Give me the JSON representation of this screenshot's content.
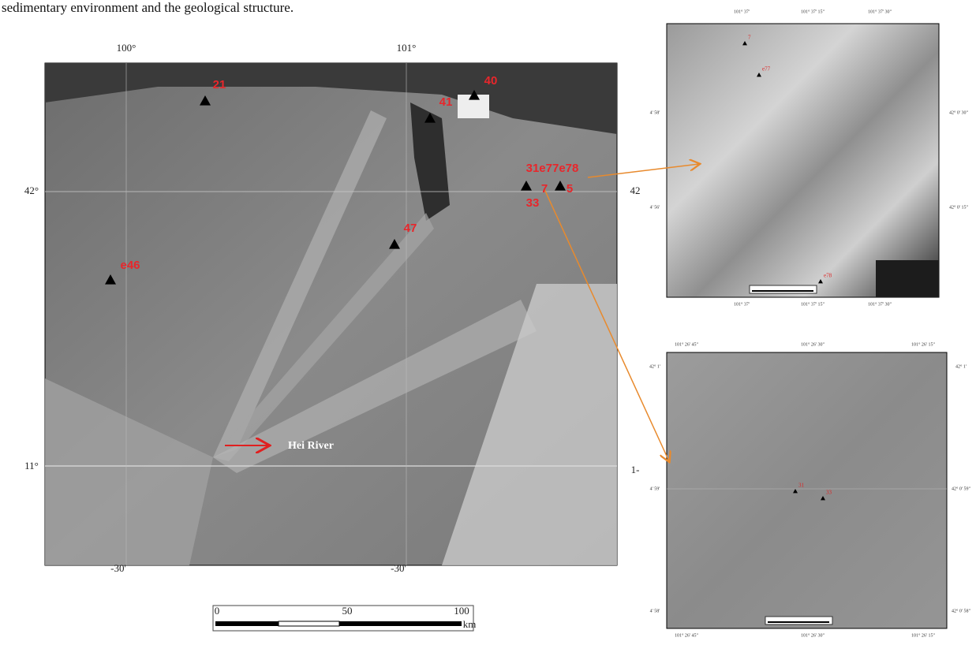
{
  "caption": "sedimentary environment and the geological structure.",
  "main_map": {
    "top_ticks": [
      "100°",
      "101°"
    ],
    "left_ticks": [
      "42°",
      "11°"
    ],
    "right_ticks": [
      "42",
      "1-"
    ],
    "bottom_ticks": [
      "-30'",
      "-30'"
    ],
    "sites": [
      {
        "label": "21"
      },
      {
        "label": "40"
      },
      {
        "label": "41"
      },
      {
        "label": "e46"
      },
      {
        "label": "47"
      },
      {
        "label": "31e77e78"
      },
      {
        "label": "7"
      },
      {
        "label": "5"
      },
      {
        "label": "33"
      }
    ],
    "river_label": "Hei River",
    "scale_labels": [
      "0",
      "50",
      "100",
      "km"
    ]
  },
  "insets": [
    {
      "top_ticks": [
        "101° 37'",
        "101° 37' 15\"",
        "101° 37' 30\""
      ],
      "bottom_ticks": [
        "101° 37'",
        "101° 37' 15\"",
        "101° 37' 30\""
      ],
      "left_ticks": [
        "4' 58'",
        "4' 56'"
      ],
      "right_ticks": [
        "42° 0' 30\"",
        "42° 0' 15\""
      ],
      "sites": [
        {
          "label": "7"
        },
        {
          "label": "e77"
        },
        {
          "label": "e78"
        }
      ]
    },
    {
      "top_ticks": [
        "101° 26' 45\"",
        "101° 26' 30\"",
        "101° 26' 15\""
      ],
      "bottom_ticks": [
        "101° 26' 45\"",
        "101° 26' 30\"",
        "101° 26' 15\""
      ],
      "left_ticks": [
        "42° 1'",
        "4' 59'",
        "4' 58'"
      ],
      "right_ticks": [
        "42° 1'",
        "42° 0' 59\"",
        "42° 0' 58\""
      ],
      "sites": [
        {
          "label": "31"
        },
        {
          "label": "33"
        }
      ]
    }
  ]
}
